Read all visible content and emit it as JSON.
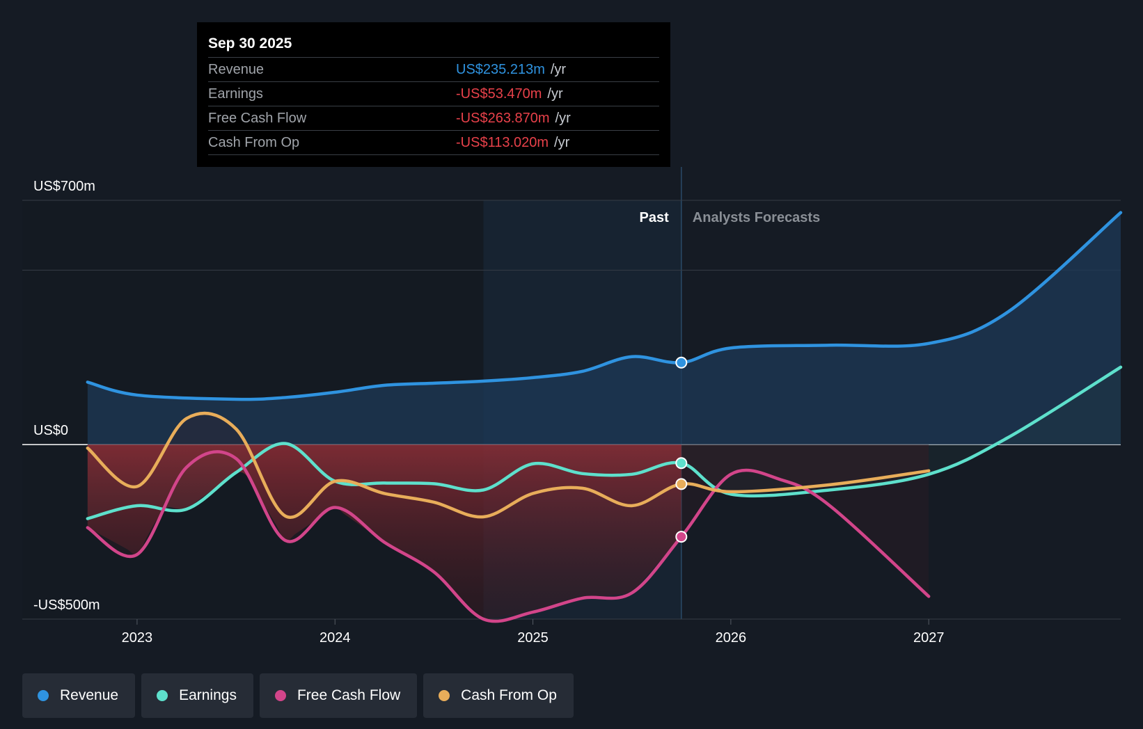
{
  "tooltip": {
    "date": "Sep 30 2025",
    "rows": [
      {
        "label": "Revenue",
        "value": "US$235.213m",
        "unit": "/yr",
        "color": "#2f93e0"
      },
      {
        "label": "Earnings",
        "value": "-US$53.470m",
        "unit": "/yr",
        "color": "#e8414a"
      },
      {
        "label": "Free Cash Flow",
        "value": "-US$263.870m",
        "unit": "/yr",
        "color": "#e8414a"
      },
      {
        "label": "Cash From Op",
        "value": "-US$113.020m",
        "unit": "/yr",
        "color": "#e8414a"
      }
    ]
  },
  "legend": [
    {
      "label": "Revenue",
      "color": "#2f93e0"
    },
    {
      "label": "Earnings",
      "color": "#5ee0cc"
    },
    {
      "label": "Free Cash Flow",
      "color": "#d2458a"
    },
    {
      "label": "Cash From Op",
      "color": "#e8ad5a"
    }
  ],
  "chart_data": {
    "type": "line",
    "title": "",
    "xlabel": "",
    "ylabel": "",
    "xlim": [
      2022.42,
      2027.97
    ],
    "ylim": [
      -500,
      700
    ],
    "y_tick_labels": [
      {
        "value": 700,
        "label": "US$700m"
      },
      {
        "value": 0,
        "label": "US$0"
      },
      {
        "value": -500,
        "label": "-US$500m"
      }
    ],
    "gridlines": [
      700,
      500,
      0,
      -500
    ],
    "x_ticks": [
      {
        "value": 2023.0,
        "label": "2023"
      },
      {
        "value": 2024.0,
        "label": "2024"
      },
      {
        "value": 2025.0,
        "label": "2025"
      },
      {
        "value": 2026.0,
        "label": "2026"
      },
      {
        "value": 2027.0,
        "label": "2027"
      }
    ],
    "past_label": "Past",
    "forecast_label": "Analysts Forecasts",
    "past_end": 2025.75,
    "highlight_start": 2024.75,
    "colors": {
      "past_fill_pos": "#1b3d5c",
      "past_fill_neg": "#8a2c31",
      "zero_line": "#ffffff",
      "grid": "#363c46",
      "axis_text": "#ffffff"
    },
    "series": [
      {
        "name": "Revenue",
        "color": "#2f93e0",
        "x": [
          2022.75,
          2023.0,
          2023.5,
          2023.75,
          2024.0,
          2024.25,
          2024.5,
          2024.75,
          2025.0,
          2025.25,
          2025.5,
          2025.75,
          2026.0,
          2026.5,
          2027.0,
          2027.4,
          2027.97
        ],
        "y": [
          179,
          142,
          130,
          135,
          150,
          170,
          176,
          182,
          192,
          210,
          252,
          235,
          277,
          285,
          290,
          380,
          665
        ],
        "marker_at": 2025.75
      },
      {
        "name": "Earnings",
        "color": "#5ee0cc",
        "x": [
          2022.75,
          2023.0,
          2023.25,
          2023.5,
          2023.75,
          2024.0,
          2024.25,
          2024.5,
          2024.75,
          2025.0,
          2025.25,
          2025.5,
          2025.75,
          2026.0,
          2026.5,
          2027.0,
          2027.4,
          2027.97
        ],
        "y": [
          -212,
          -175,
          -185,
          -80,
          3,
          -105,
          -110,
          -112,
          -130,
          -55,
          -83,
          -85,
          -53,
          -142,
          -130,
          -85,
          20,
          222
        ],
        "marker_at": 2025.75
      },
      {
        "name": "Free Cash Flow",
        "color": "#d2458a",
        "x": [
          2022.75,
          2023.0,
          2023.25,
          2023.5,
          2023.75,
          2024.0,
          2024.25,
          2024.5,
          2024.75,
          2025.0,
          2025.25,
          2025.5,
          2025.75,
          2026.0,
          2026.25,
          2026.5,
          2027.0
        ],
        "y": [
          -238,
          -315,
          -65,
          -40,
          -275,
          -180,
          -280,
          -365,
          -500,
          -480,
          -440,
          -425,
          -264,
          -85,
          -100,
          -175,
          -435
        ],
        "marker_at": 2025.75
      },
      {
        "name": "Cash From Op",
        "color": "#e8ad5a",
        "x": [
          2022.75,
          2023.0,
          2023.25,
          2023.5,
          2023.75,
          2024.0,
          2024.25,
          2024.5,
          2024.75,
          2025.0,
          2025.25,
          2025.5,
          2025.75,
          2026.0,
          2026.5,
          2027.0
        ],
        "y": [
          -10,
          -120,
          75,
          45,
          -205,
          -105,
          -140,
          -165,
          -207,
          -140,
          -125,
          -175,
          -113,
          -135,
          -115,
          -75
        ],
        "marker_at": 2025.75
      }
    ]
  }
}
